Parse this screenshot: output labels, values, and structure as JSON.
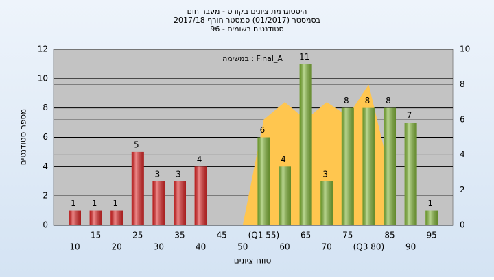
{
  "chart_data": {
    "type": "bar",
    "title": "היסטוגרמת ציונים בקורס - מעבר חום",
    "subtitle": "בסמסטר  (01/2017)  סמסטר חורף 2017/18",
    "subtitle2": "סטודנטים רשומים - 96",
    "annotation": "Final_A : במשימה",
    "x_label": "טווח ציונים",
    "y_label": "מספר סטודנטים",
    "categories": [
      "10",
      "15",
      "20",
      "25",
      "30",
      "35",
      "40",
      "45",
      "50",
      "(Q1 55)",
      "60",
      "65",
      "70",
      "75",
      "(Q3 80)",
      "85",
      "90",
      "95"
    ],
    "values": [
      1,
      1,
      1,
      5,
      3,
      3,
      4,
      0,
      0,
      6,
      4,
      11,
      3,
      8,
      8,
      8,
      7,
      1
    ],
    "colors": [
      "#e02828",
      "#e02828",
      "#e02828",
      "#e02828",
      "#e02828",
      "#e02828",
      "#e02828",
      "#e02828",
      "#e02828",
      "#84b83a",
      "#84b83a",
      "#84b83a",
      "#84b83a",
      "#84b83a",
      "#84b83a",
      "#84b83a",
      "#84b83a",
      "#84b83a"
    ],
    "area": {
      "type": "area",
      "axis": "y2",
      "color": "#ffc64f",
      "values": [
        null,
        null,
        null,
        null,
        null,
        null,
        null,
        null,
        0,
        6,
        7,
        6,
        7,
        6.2,
        8,
        3,
        null,
        null
      ]
    },
    "ylim": [
      0,
      12
    ],
    "yticks": [
      0,
      2,
      4,
      6,
      8,
      10,
      12
    ],
    "y2lim": [
      0,
      10
    ],
    "y2ticks": [
      0,
      2,
      4,
      6,
      8,
      10
    ],
    "grid": true
  }
}
